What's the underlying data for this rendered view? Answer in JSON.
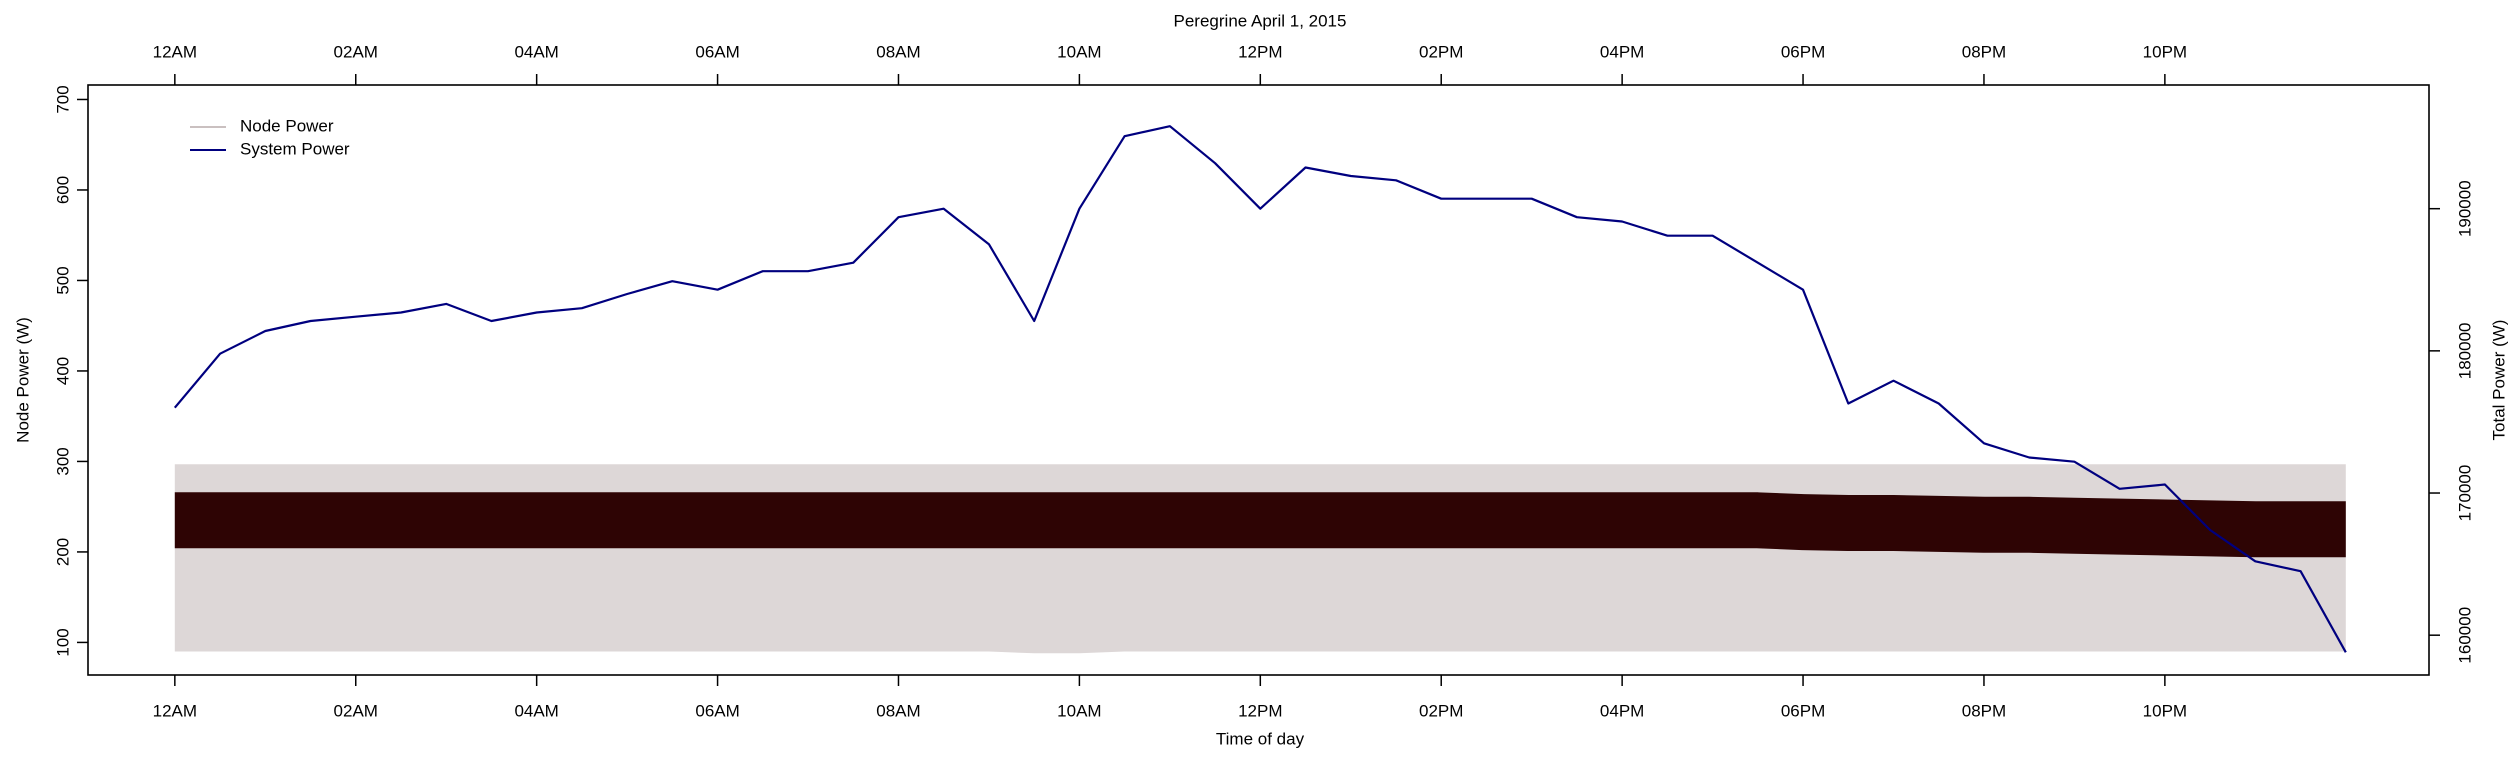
{
  "chart_data": {
    "type": "line",
    "title": "Peregrine April 1, 2015",
    "x_label": "Time of day",
    "y_label": "Node Power (W)",
    "y2_label": "Total Power (W)",
    "legend": "top-left",
    "xlim": [
      -0.96,
      24.92
    ],
    "xticks": [
      {
        "value": 0,
        "label": "12AM"
      },
      {
        "value": 2,
        "label": "02AM"
      },
      {
        "value": 4,
        "label": "04AM"
      },
      {
        "value": 6,
        "label": "06AM"
      },
      {
        "value": 8,
        "label": "08AM"
      },
      {
        "value": 10,
        "label": "10AM"
      },
      {
        "value": 12,
        "label": "12PM"
      },
      {
        "value": 14,
        "label": "02PM"
      },
      {
        "value": 16,
        "label": "04PM"
      },
      {
        "value": 18,
        "label": "06PM"
      },
      {
        "value": 20,
        "label": "08PM"
      },
      {
        "value": 22,
        "label": "10PM"
      }
    ],
    "ylim": [
      64,
      716
    ],
    "yticks": [
      100,
      200,
      300,
      400,
      500,
      600,
      700
    ],
    "y2lim": [
      157200,
      198700
    ],
    "y2ticks": [
      160000,
      170000,
      180000,
      190000
    ],
    "x": [
      0,
      0.5,
      1,
      1.5,
      2,
      2.5,
      3,
      3.5,
      4,
      4.5,
      5,
      5.5,
      6,
      6.5,
      7,
      7.5,
      8,
      8.5,
      9,
      9.5,
      10,
      10.5,
      11,
      11.5,
      12,
      12.5,
      13,
      13.5,
      14,
      14.5,
      15,
      15.5,
      16,
      16.5,
      17,
      17.5,
      18,
      18.5,
      19,
      19.5,
      20,
      20.5,
      21,
      21.5,
      22,
      22.5,
      23,
      23.5,
      24
    ],
    "series": [
      {
        "name": "Node Power",
        "color": "#2e0404",
        "values": [
          235,
          235,
          235,
          235,
          235,
          235,
          235,
          235,
          235,
          235,
          235,
          235,
          235,
          235,
          235,
          235,
          235,
          235,
          235,
          235,
          235,
          235,
          235,
          235,
          235,
          235,
          235,
          235,
          235,
          235,
          235,
          235,
          235,
          235,
          235,
          235,
          233,
          232,
          232,
          231,
          230,
          230,
          229,
          228,
          227,
          226,
          225,
          225,
          225
        ],
        "low": [
          90,
          90,
          90,
          90,
          90,
          90,
          90,
          90,
          90,
          90,
          90,
          90,
          90,
          90,
          90,
          90,
          90,
          90,
          90,
          88,
          88,
          90,
          90,
          90,
          90,
          90,
          90,
          90,
          90,
          90,
          90,
          90,
          90,
          90,
          90,
          90,
          90,
          90,
          90,
          90,
          90,
          90,
          90,
          90,
          90,
          90,
          90,
          90,
          90
        ],
        "high": [
          297,
          297,
          297,
          297,
          297,
          297,
          297,
          297,
          297,
          297,
          297,
          297,
          297,
          297,
          297,
          297,
          297,
          297,
          297,
          297,
          297,
          297,
          297,
          297,
          297,
          297,
          297,
          297,
          297,
          297,
          297,
          297,
          297,
          297,
          297,
          297,
          297,
          297,
          297,
          297,
          297,
          297,
          297,
          297,
          297,
          297,
          297,
          297,
          297
        ]
      },
      {
        "name": "System Power",
        "color": "#00007f",
        "axis": "y2",
        "values": [
          176000,
          179800,
          181400,
          182100,
          182400,
          182700,
          183300,
          182100,
          182700,
          183000,
          184000,
          184900,
          184300,
          185600,
          185600,
          186200,
          189400,
          190000,
          187500,
          182100,
          190000,
          195100,
          195800,
          193200,
          190000,
          192900,
          192300,
          192000,
          190700,
          190700,
          190700,
          189400,
          189100,
          188100,
          188100,
          186200,
          184300,
          176300,
          177900,
          176300,
          173500,
          172500,
          172200,
          170300,
          170600,
          167400,
          165200,
          164500,
          158800
        ]
      }
    ]
  }
}
